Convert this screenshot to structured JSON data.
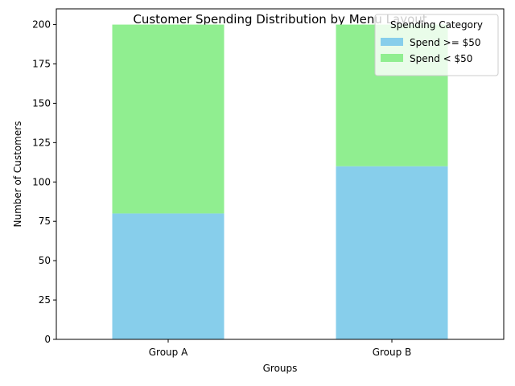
{
  "chart_data": {
    "type": "bar",
    "stacked": true,
    "title": "Customer Spending Distribution by Menu Layout",
    "xlabel": "Groups",
    "ylabel": "Number of Customers",
    "categories": [
      "Group A",
      "Group B"
    ],
    "series": [
      {
        "name": "Spend >= $50",
        "values": [
          80,
          110
        ],
        "color": "#87ceeb"
      },
      {
        "name": "Spend < $50",
        "values": [
          120,
          90
        ],
        "color": "#90ee90"
      }
    ],
    "ylim": [
      0,
      210
    ],
    "yticks": [
      0,
      25,
      50,
      75,
      100,
      125,
      150,
      175,
      200
    ],
    "grid": false,
    "legend": {
      "title": "Spending Category",
      "placement": "top-right"
    }
  }
}
